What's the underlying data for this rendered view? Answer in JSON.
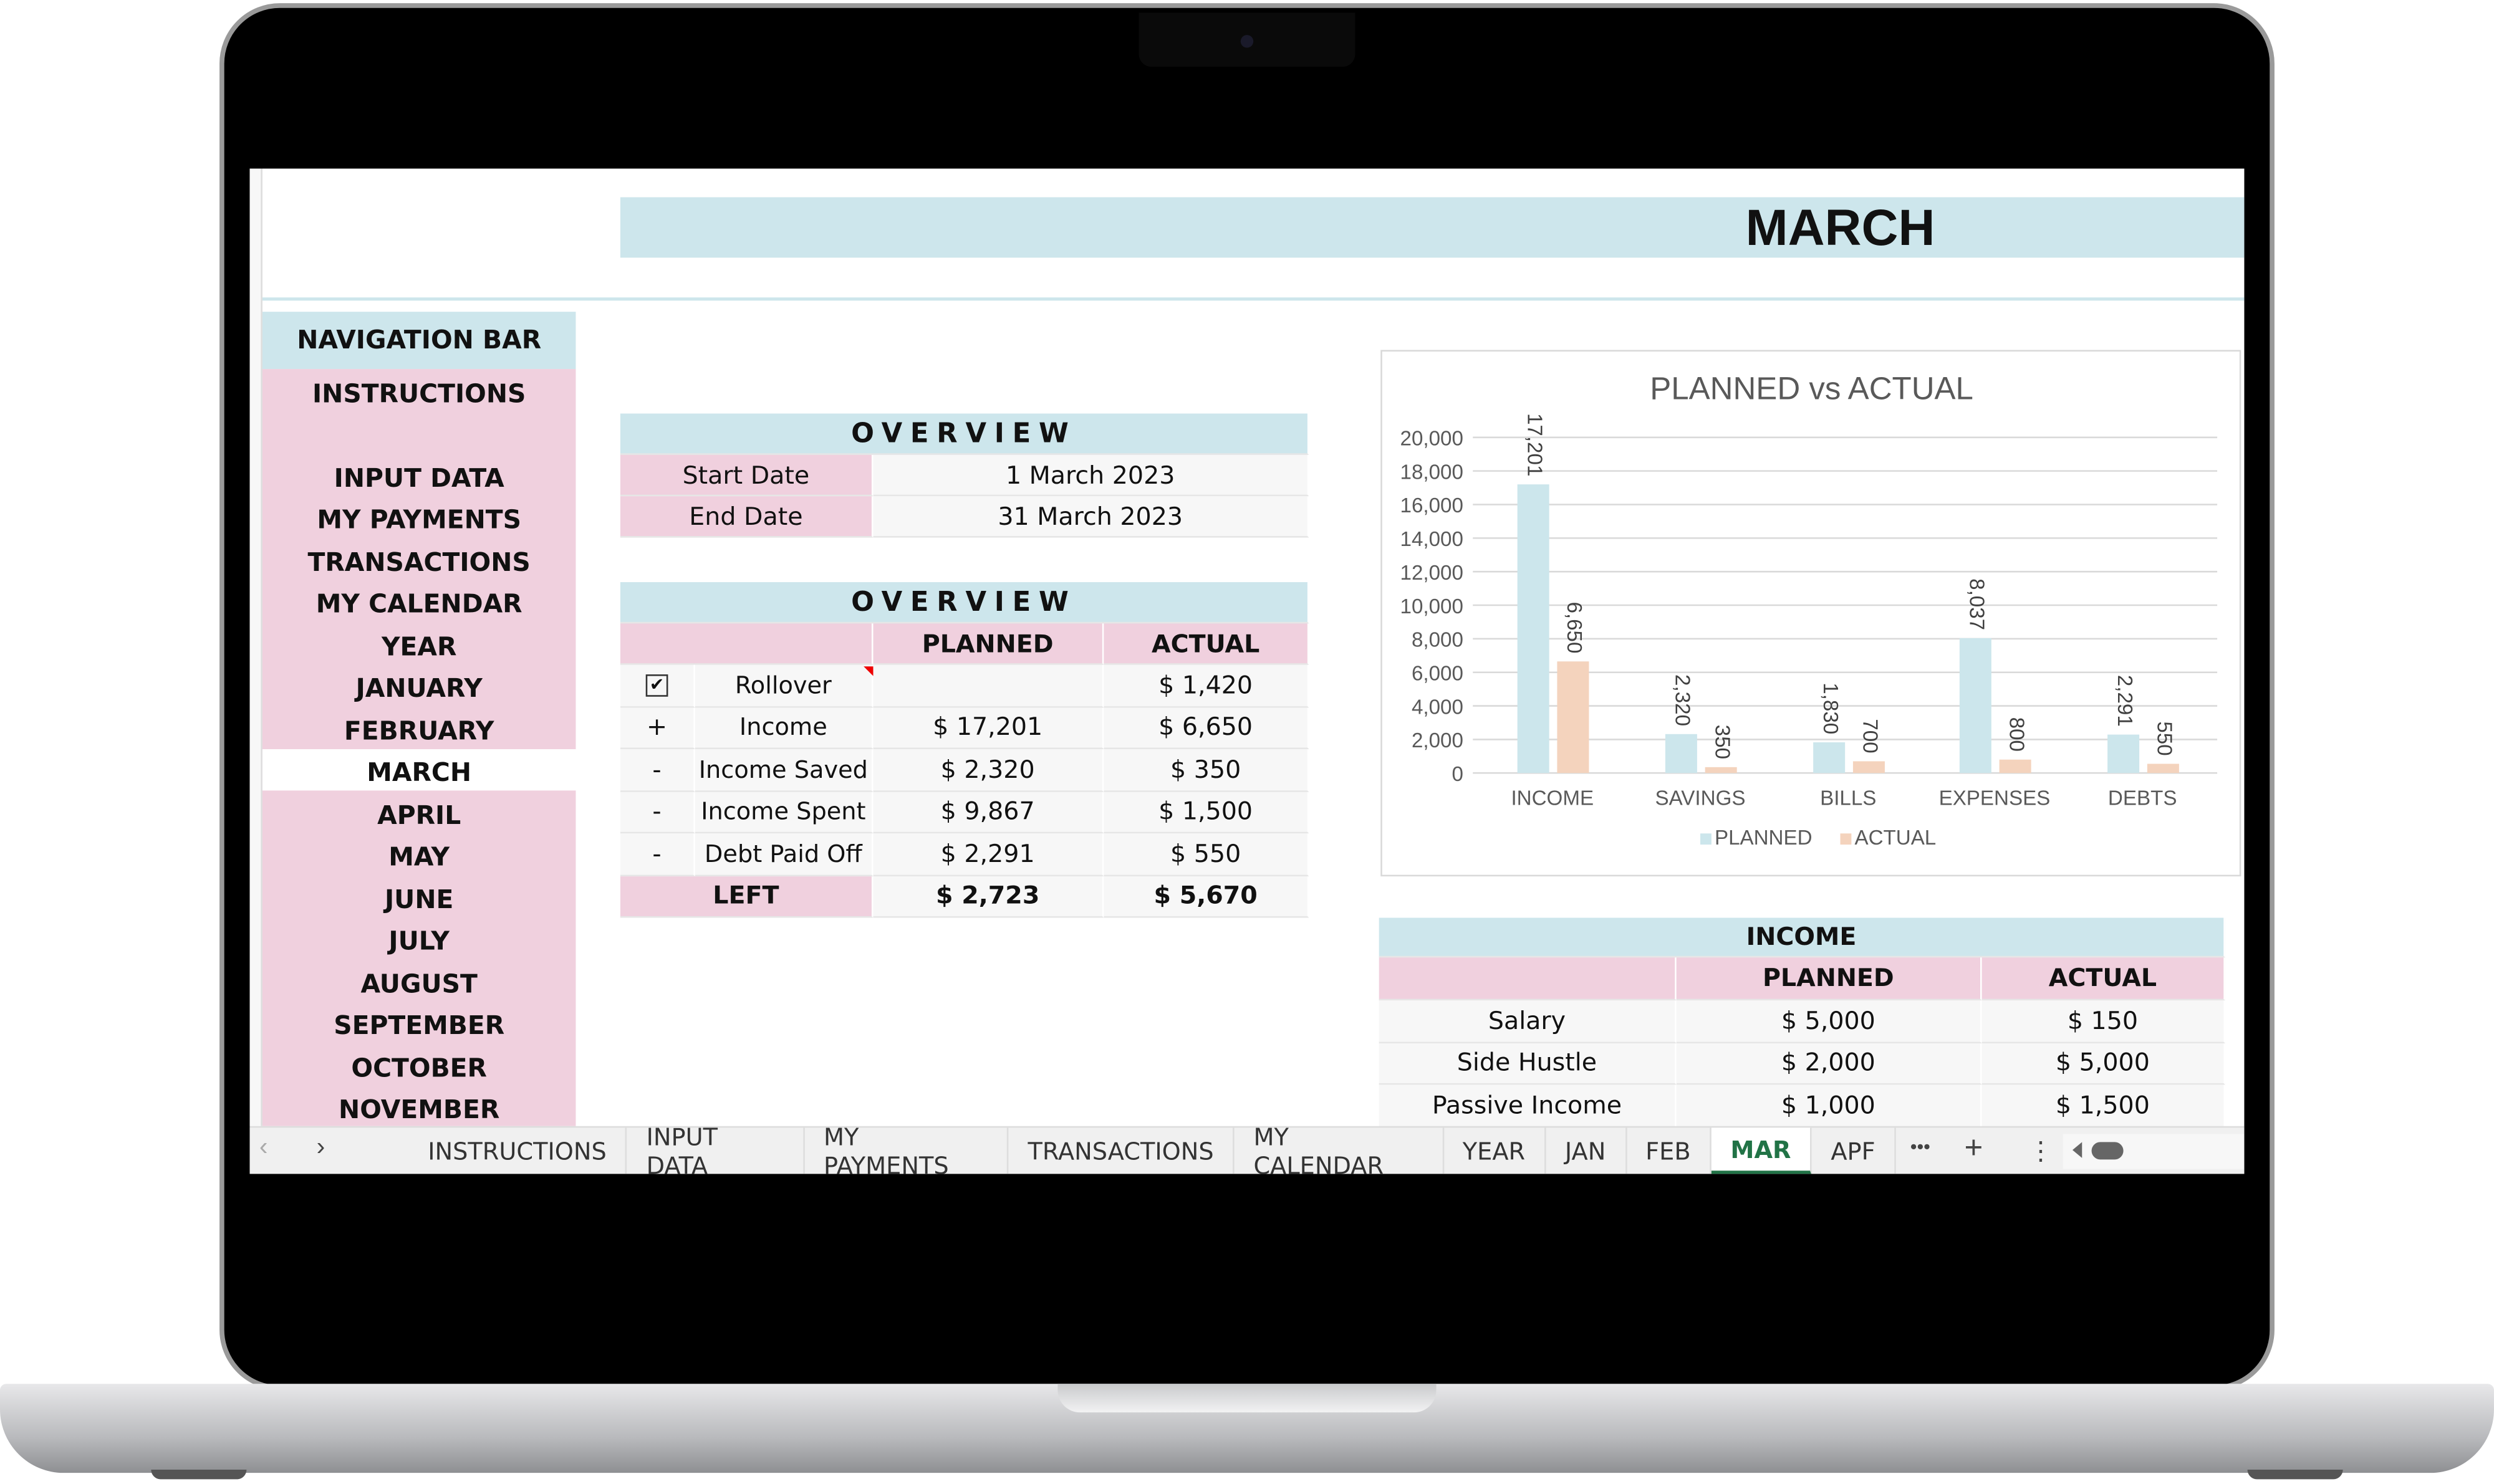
{
  "title": "MARCH",
  "nav": {
    "header": "NAVIGATION BAR",
    "items": [
      "INSTRUCTIONS",
      "INPUT DATA",
      "MY PAYMENTS",
      "TRANSACTIONS",
      "MY CALENDAR",
      "YEAR",
      "JANUARY",
      "FEBRUARY",
      "MARCH",
      "APRIL",
      "MAY",
      "JUNE",
      "JULY",
      "AUGUST",
      "SEPTEMBER",
      "OCTOBER",
      "NOVEMBER"
    ],
    "active": "MARCH"
  },
  "overview_dates": {
    "header": "OVERVIEW",
    "rows": [
      {
        "label": "Start Date",
        "value": "1 March 2023"
      },
      {
        "label": "End Date",
        "value": "31 March 2023"
      }
    ]
  },
  "overview": {
    "header": "OVERVIEW",
    "col_planned": "PLANNED",
    "col_actual": "ACTUAL",
    "rollover_checked": true,
    "rows": [
      {
        "sign": "",
        "label": "Rollover",
        "planned": "",
        "actual": "$ 1,420"
      },
      {
        "sign": "+",
        "label": "Income",
        "planned": "$ 17,201",
        "actual": "$ 6,650"
      },
      {
        "sign": "-",
        "label": "Income Saved",
        "planned": "$ 2,320",
        "actual": "$ 350"
      },
      {
        "sign": "-",
        "label": "Income Spent",
        "planned": "$ 9,867",
        "actual": "$ 1,500"
      },
      {
        "sign": "-",
        "label": "Debt Paid Off",
        "planned": "$ 2,291",
        "actual": "$ 550"
      }
    ],
    "left": {
      "label": "LEFT",
      "planned": "$ 2,723",
      "actual": "$ 5,670"
    }
  },
  "income": {
    "header": "INCOME",
    "col_planned": "PLANNED",
    "col_actual": "ACTUAL",
    "rows": [
      {
        "label": "Salary",
        "planned": "$ 5,000",
        "actual": "$ 150"
      },
      {
        "label": "Side Hustle",
        "planned": "$ 2,000",
        "actual": "$ 5,000"
      },
      {
        "label": "Passive Income",
        "planned": "$ 1,000",
        "actual": "$ 1,500"
      }
    ]
  },
  "chart_data": {
    "type": "bar",
    "title": "PLANNED vs ACTUAL",
    "categories": [
      "INCOME",
      "SAVINGS",
      "BILLS",
      "EXPENSES",
      "DEBTS"
    ],
    "series": [
      {
        "name": "PLANNED",
        "values": [
          17201,
          2320,
          1830,
          8037,
          2291
        ],
        "color": "#cce6ec"
      },
      {
        "name": "ACTUAL",
        "values": [
          6650,
          350,
          700,
          800,
          550
        ],
        "color": "#f4d3bd"
      }
    ],
    "ylim": [
      0,
      20000
    ],
    "yticks": [
      "0",
      "2,000",
      "4,000",
      "6,000",
      "8,000",
      "10,000",
      "12,000",
      "14,000",
      "16,000",
      "18,000",
      "20,000"
    ],
    "data_labels": [
      [
        "17,201",
        "2,320",
        "1,830",
        "8,037",
        "2,291"
      ],
      [
        "6,650",
        "350",
        "700",
        "800",
        "550"
      ]
    ],
    "grid": true,
    "legend": "bottom"
  },
  "tabs": {
    "items": [
      "INSTRUCTIONS",
      "INPUT DATA",
      "MY PAYMENTS",
      "TRANSACTIONS",
      "MY CALENDAR",
      "YEAR",
      "JAN",
      "FEB",
      "MAR",
      "APF"
    ],
    "active": "MAR",
    "more": "•••",
    "add": "+",
    "options": "⋮"
  },
  "colors": {
    "light_blue": "#cde6ec",
    "pink": "#f0d0de",
    "active_tab": "#217346"
  }
}
